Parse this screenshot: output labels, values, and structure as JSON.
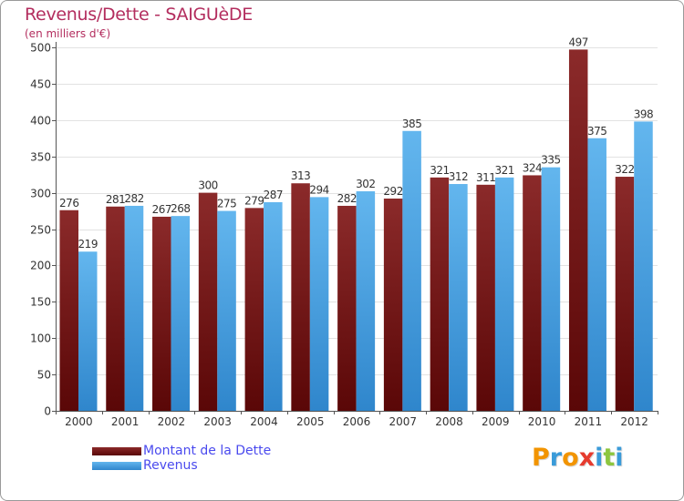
{
  "colors": {
    "title": "#b32d5e",
    "axis_text": "#333333",
    "dette_top": "#8b2a2a",
    "dette_bottom": "#5a0707",
    "revenus_top": "#63b6ee",
    "revenus_bottom": "#2f86cc",
    "legend_text": "#4a4aee"
  },
  "header": {
    "title": "Revenus/Dette - SAIGUèDE",
    "subtitle": "(en milliers d'€)"
  },
  "chart_data": {
    "type": "bar",
    "categories": [
      "2000",
      "2001",
      "2002",
      "2003",
      "2004",
      "2005",
      "2006",
      "2007",
      "2008",
      "2009",
      "2010",
      "2011",
      "2012"
    ],
    "series": [
      {
        "name": "Montant de la Dette",
        "values": [
          276,
          281,
          267,
          300,
          279,
          313,
          282,
          292,
          321,
          311,
          324,
          497,
          322
        ]
      },
      {
        "name": "Revenus",
        "values": [
          219,
          282,
          268,
          275,
          287,
          294,
          302,
          385,
          312,
          321,
          335,
          375,
          398
        ]
      }
    ],
    "ylim": [
      0,
      500
    ],
    "yticks": [
      0,
      50,
      100,
      150,
      200,
      250,
      300,
      350,
      400,
      450,
      500
    ],
    "grid": true,
    "legend_position": "bottom-left"
  },
  "legend": {
    "items": [
      {
        "label": "Montant de la Dette",
        "color": "#5a0707"
      },
      {
        "label": "Revenus",
        "color": "#3d9be0"
      }
    ]
  },
  "logo": {
    "letters": [
      {
        "ch": "P",
        "color": "#f29400"
      },
      {
        "ch": "r",
        "color": "#3a9bd9"
      },
      {
        "ch": "o",
        "color": "#f29400"
      },
      {
        "ch": "x",
        "color": "#e63b2e"
      },
      {
        "ch": "i",
        "color": "#3a9bd9"
      },
      {
        "ch": "t",
        "color": "#8dc63f"
      },
      {
        "ch": "i",
        "color": "#3a9bd9"
      }
    ]
  }
}
